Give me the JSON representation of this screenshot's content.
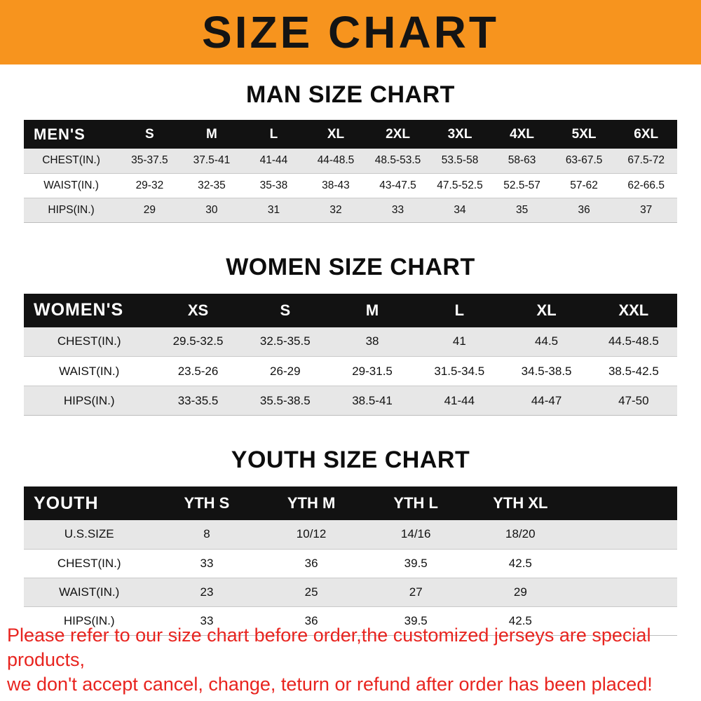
{
  "banner": {
    "title": "SIZE CHART",
    "bg_color": "#f7941e"
  },
  "sections": [
    {
      "heading": "MAN SIZE CHART",
      "table": {
        "header": [
          "MEN'S",
          "S",
          "M",
          "L",
          "XL",
          "2XL",
          "3XL",
          "4XL",
          "5XL",
          "6XL"
        ],
        "rows": [
          {
            "label": "CHEST(IN.)",
            "values": [
              "35-37.5",
              "37.5-41",
              "41-44",
              "44-48.5",
              "48.5-53.5",
              "53.5-58",
              "58-63",
              "63-67.5",
              "67.5-72"
            ]
          },
          {
            "label": "WAIST(IN.)",
            "values": [
              "29-32",
              "32-35",
              "35-38",
              "38-43",
              "43-47.5",
              "47.5-52.5",
              "52.5-57",
              "57-62",
              "62-66.5"
            ]
          },
          {
            "label": "HIPS(IN.)",
            "values": [
              "29",
              "30",
              "31",
              "32",
              "33",
              "34",
              "35",
              "36",
              "37"
            ]
          }
        ]
      }
    },
    {
      "heading": "WOMEN SIZE CHART",
      "table": {
        "header": [
          "WOMEN'S",
          "XS",
          "S",
          "M",
          "L",
          "XL",
          "XXL"
        ],
        "rows": [
          {
            "label": "CHEST(IN.)",
            "values": [
              "29.5-32.5",
              "32.5-35.5",
              "38",
              "41",
              "44.5",
              "44.5-48.5"
            ]
          },
          {
            "label": "WAIST(IN.)",
            "values": [
              "23.5-26",
              "26-29",
              "29-31.5",
              "31.5-34.5",
              "34.5-38.5",
              "38.5-42.5"
            ]
          },
          {
            "label": "HIPS(IN.)",
            "values": [
              "33-35.5",
              "35.5-38.5",
              "38.5-41",
              "41-44",
              "44-47",
              "47-50"
            ]
          }
        ]
      }
    },
    {
      "heading": "YOUTH SIZE CHART",
      "table": {
        "header": [
          "YOUTH",
          "YTH S",
          "YTH M",
          "YTH L",
          "YTH XL"
        ],
        "rows": [
          {
            "label": "U.S.SIZE",
            "values": [
              "8",
              "10/12",
              "14/16",
              "18/20"
            ]
          },
          {
            "label": "CHEST(IN.)",
            "values": [
              "33",
              "36",
              "39.5",
              "42.5"
            ]
          },
          {
            "label": "WAIST(IN.)",
            "values": [
              "23",
              "25",
              "27",
              "29"
            ]
          },
          {
            "label": "HIPS(IN.)",
            "values": [
              "33",
              "36",
              "39.5",
              "42.5"
            ]
          }
        ]
      }
    }
  ],
  "footer": {
    "line1": "Please refer to our size chart before order,the customized jerseys are special products,",
    "line2": "we don't accept cancel, change, teturn or refund after order has been placed!",
    "text_color": "#e8241f"
  }
}
